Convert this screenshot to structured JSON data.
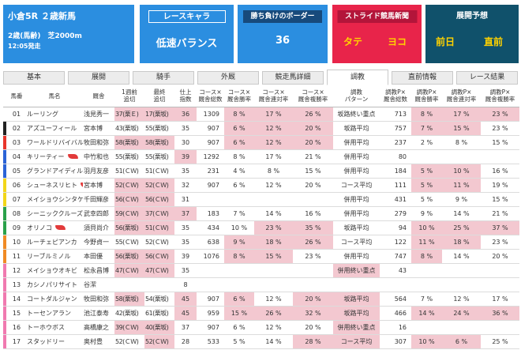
{
  "race": {
    "title": "小倉5R ２歳新馬",
    "conditions": "2歳(馬齢)　芝2000m",
    "start_time": "12:05発走"
  },
  "cards": {
    "race_chara": {
      "label": "レースキャラ",
      "value": "低速バランス"
    },
    "border": {
      "label": "勝ち負けのボーダー",
      "value": "36"
    },
    "stride": {
      "label": "ストライド競馬新聞",
      "left": "タテ",
      "right": "ヨコ"
    },
    "tenkai": {
      "label": "展開予想",
      "left": "前日",
      "right": "直前"
    }
  },
  "tabs": [
    "基本",
    "展開",
    "騎手",
    "外厩",
    "競走馬詳細",
    "調教",
    "直前情報",
    "レース結果"
  ],
  "active_tab": "調教",
  "columns": [
    "馬番",
    "馬名",
    "厩舎",
    "1週前|追切",
    "最終|追切",
    "仕上|指数",
    "コース×|厩舎総数",
    "コース×|厩舎勝率",
    "コース×|厩舎連対率",
    "コース×|厩舎複勝率",
    "調教|パターン",
    "調教P×|厩舎総数",
    "調教P×|厩舎勝率",
    "調教P×|厩舎連対率",
    "調教P×|厩舎複勝率"
  ],
  "colors": {
    "frame1": "#ffffff",
    "frame2": "#222222",
    "frame3": "#e8342a",
    "frame4": "#2b63d6",
    "frame5": "#f2d61a",
    "frame6": "#2aa14a",
    "frame7": "#f08a24",
    "frame8": "#f07ab0",
    "highlight": "#f3c8d0"
  },
  "rows": [
    {
      "no": "01",
      "frame": 1,
      "name": "ルーリング",
      "cap": false,
      "trainer": "浅見秀一",
      "w1": "37(栗Ｅ)",
      "fin": "17(栗坂)",
      "sh": "36",
      "ct": "1309",
      "cw": "8 %",
      "cr": "17 %",
      "cp": "26 %",
      "pat": "坂路終い重点",
      "pt": "713",
      "pw": "8 %",
      "pr": "17 %",
      "pp": "23 %",
      "hl": [
        3,
        4,
        5,
        7,
        8,
        9,
        12,
        13,
        14
      ]
    },
    {
      "no": "02",
      "frame": 2,
      "name": "アズユーフィール",
      "cap": false,
      "trainer": "宮本博",
      "w1": "43(栗坂)",
      "fin": "55(栗坂)",
      "sh": "35",
      "ct": "907",
      "cw": "6 %",
      "cr": "12 %",
      "cp": "20 %",
      "pat": "坂路平均",
      "pt": "757",
      "pw": "7 %",
      "pr": "15 %",
      "pp": "23 %",
      "hl": [
        7,
        8,
        9,
        12,
        13
      ]
    },
    {
      "no": "03",
      "frame": 3,
      "name": "ワールドリバイバル",
      "cap": false,
      "trainer": "牧田和弥",
      "w1": "58(栗坂)",
      "fin": "58(栗坂)",
      "sh": "30",
      "ct": "907",
      "cw": "6 %",
      "cr": "12 %",
      "cp": "20 %",
      "pat": "併用平均",
      "pt": "237",
      "pw": "2 %",
      "pr": "8 %",
      "pp": "15 %",
      "hl": [
        3,
        4,
        7,
        8,
        9
      ]
    },
    {
      "no": "04",
      "frame": 4,
      "name": "キリーティー",
      "cap": true,
      "trainer": "中竹和也",
      "w1": "55(栗坂)",
      "fin": "55(栗坂)",
      "sh": "39",
      "ct": "1292",
      "cw": "8 %",
      "cr": "17 %",
      "cp": "21 %",
      "pat": "併用平均",
      "pt": "80",
      "pw": "",
      "pr": "",
      "pp": "",
      "hl": [
        5
      ]
    },
    {
      "no": "05",
      "frame": 4,
      "name": "グランドアイディル",
      "cap": false,
      "trainer": "羽月友彦",
      "w1": "51(ＣＷ)",
      "fin": "51(ＣＷ)",
      "sh": "35",
      "ct": "231",
      "cw": "4 %",
      "cr": "8 %",
      "cp": "15 %",
      "pat": "併用平均",
      "pt": "184",
      "pw": "5 %",
      "pr": "10 %",
      "pp": "16 %",
      "hl": [
        12,
        13
      ]
    },
    {
      "no": "06",
      "frame": 5,
      "name": "シューネスリヒト",
      "cap": true,
      "trainer": "宮本博",
      "w1": "52(ＣＷ)",
      "fin": "52(ＣＷ)",
      "sh": "32",
      "ct": "907",
      "cw": "6 %",
      "cr": "12 %",
      "cp": "20 %",
      "pat": "コース平均",
      "pt": "111",
      "pw": "5 %",
      "pr": "11 %",
      "pp": "19 %",
      "hl": [
        3,
        4,
        12,
        13
      ]
    },
    {
      "no": "07",
      "frame": 5,
      "name": "メイショウシンタケ",
      "cap": false,
      "trainer": "千田輝彦",
      "w1": "56(ＣＷ)",
      "fin": "56(ＣＷ)",
      "sh": "31",
      "ct": "",
      "cw": "",
      "cr": "",
      "cp": "",
      "pat": "併用平均",
      "pt": "431",
      "pw": "5 %",
      "pr": "9 %",
      "pp": "15 %",
      "hl": [
        3,
        4
      ]
    },
    {
      "no": "08",
      "frame": 6,
      "name": "シーニッククルーズ",
      "cap": false,
      "trainer": "武幸四郎",
      "w1": "59(ＣＷ)",
      "fin": "37(ＣＷ)",
      "sh": "37",
      "ct": "183",
      "cw": "7 %",
      "cr": "14 %",
      "cp": "16 %",
      "pat": "併用平均",
      "pt": "279",
      "pw": "9 %",
      "pr": "14 %",
      "pp": "21 %",
      "hl": [
        3,
        4,
        5
      ]
    },
    {
      "no": "09",
      "frame": 6,
      "name": "オリノコ",
      "cap": true,
      "trainer": "須貝尚介",
      "w1": "56(栗坂)",
      "fin": "51(ＣＷ)",
      "sh": "35",
      "ct": "434",
      "cw": "10 %",
      "cr": "23 %",
      "cp": "35 %",
      "pat": "坂路平均",
      "pt": "94",
      "pw": "10 %",
      "pr": "25 %",
      "pp": "37 %",
      "hl": [
        3,
        4,
        8,
        9,
        12,
        13,
        14
      ]
    },
    {
      "no": "10",
      "frame": 7,
      "name": "ルーチェピアンカ",
      "cap": false,
      "trainer": "今野貞一",
      "w1": "55(ＣＷ)",
      "fin": "52(ＣＷ)",
      "sh": "35",
      "ct": "638",
      "pat": "コース平均",
      "cw": "9 %",
      "cr": "18 %",
      "cp": "26 %",
      "pt": "122",
      "pw": "11 %",
      "pr": "18 %",
      "pp": "23 %",
      "hl": [
        7,
        8,
        9,
        12,
        13
      ]
    },
    {
      "no": "11",
      "frame": 7,
      "name": "リーブルミノル",
      "cap": false,
      "trainer": "本田優",
      "w1": "56(栗坂)",
      "fin": "56(ＣＷ)",
      "sh": "39",
      "ct": "1076",
      "cw": "8 %",
      "cr": "15 %",
      "cp": "23 %",
      "pat": "併用平均",
      "pt": "747",
      "pw": "8 %",
      "pr": "14 %",
      "pp": "20 %",
      "hl": [
        3,
        4,
        7,
        8,
        12
      ]
    },
    {
      "no": "12",
      "frame": 8,
      "name": "メイショウオキビ",
      "cap": false,
      "trainer": "松永昌博",
      "w1": "47(ＣＷ)",
      "fin": "47(ＣＷ)",
      "sh": "35",
      "ct": "",
      "cw": "",
      "cr": "",
      "cp": "",
      "pat": "併用終い重点",
      "pt": "43",
      "pw": "",
      "pr": "",
      "pp": "",
      "hl": [
        3,
        4,
        10
      ]
    },
    {
      "no": "13",
      "frame": 8,
      "name": "カシノパリサイト",
      "cap": false,
      "trainer": "谷潔",
      "w1": "",
      "fin": "",
      "sh": "8",
      "ct": "",
      "cw": "",
      "cr": "",
      "cp": "",
      "pat": "",
      "pt": "",
      "pw": "",
      "pr": "",
      "pp": "",
      "hl": []
    },
    {
      "no": "14",
      "frame": 8,
      "name": "コートダルジャン",
      "cap": false,
      "trainer": "牧田和弥",
      "w1": "58(栗坂)",
      "fin": "54(栗坂)",
      "sh": "45",
      "ct": "907",
      "cw": "6 %",
      "cr": "12 %",
      "cp": "20 %",
      "pat": "坂路平均",
      "pt": "564",
      "pw": "7 %",
      "pr": "12 %",
      "pp": "17 %",
      "hl": [
        3,
        5,
        7,
        9,
        10
      ]
    },
    {
      "no": "15",
      "frame": 8,
      "name": "トーセンアラン",
      "cap": false,
      "trainer": "池江泰寿",
      "w1": "42(栗坂)",
      "fin": "61(栗坂)",
      "sh": "45",
      "ct": "959",
      "cw": "15 %",
      "cr": "26 %",
      "cp": "32 %",
      "pat": "坂路平均",
      "pt": "466",
      "pw": "14 %",
      "pr": "24 %",
      "pp": "36 %",
      "hl": [
        5,
        7,
        8,
        9,
        10,
        12,
        13,
        14
      ]
    },
    {
      "no": "16",
      "frame": 8,
      "name": "トーホウボス",
      "cap": false,
      "trainer": "高橋康之",
      "w1": "39(ＣＷ)",
      "fin": "40(栗坂)",
      "sh": "37",
      "ct": "907",
      "cw": "6 %",
      "cr": "12 %",
      "cp": "20 %",
      "pat": "併用終い重点",
      "pt": "16",
      "pw": "",
      "pr": "",
      "pp": "",
      "hl": [
        3,
        4,
        10
      ]
    },
    {
      "no": "17",
      "frame": 8,
      "name": "スタッドリー",
      "cap": false,
      "trainer": "奥村豊",
      "w1": "52(ＣＷ)",
      "fin": "52(ＣＷ)",
      "sh": "28",
      "ct": "533",
      "cw": "5 %",
      "cr": "14 %",
      "cp": "28 %",
      "pat": "コース平均",
      "pt": "307",
      "pw": "10 %",
      "pr": "6 %",
      "pp": "25 %",
      "hl": [
        4,
        9,
        10,
        12,
        13
      ]
    }
  ]
}
